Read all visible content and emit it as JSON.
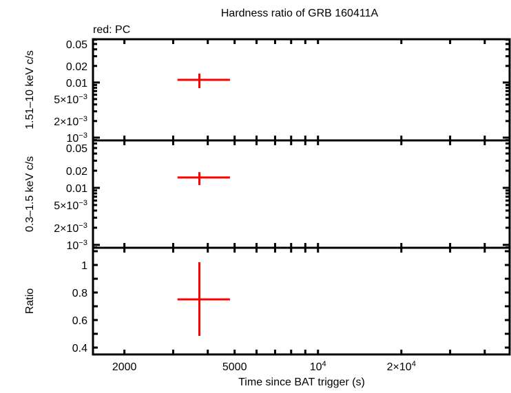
{
  "chart_data": {
    "type": "scatter",
    "title": "Hardness ratio of GRB 160411A",
    "legend": "red: PC",
    "legend_placement": "top-left",
    "xlabel": "Time since BAT trigger (s)",
    "xscale": "log",
    "xlim": [
      1540,
      49200
    ],
    "xticks": [
      {
        "value": 2000,
        "label": "2000"
      },
      {
        "value": 5000,
        "label": "5000"
      },
      {
        "value": 10000,
        "label": "10",
        "sup": "4"
      },
      {
        "value": 20000,
        "label": "2×10",
        "sup": "4"
      }
    ],
    "series_color": "#ff0000",
    "panels": [
      {
        "ylabel": "1.51–10 keV c/s",
        "yscale": "log",
        "ylim": [
          0.00089,
          0.061
        ],
        "yticks": [
          {
            "value": 0.05,
            "label": "0.05",
            "sup": ""
          },
          {
            "value": 0.02,
            "label": "0.02",
            "sup": ""
          },
          {
            "value": 0.01,
            "label": "0.01",
            "sup": ""
          },
          {
            "value": 0.005,
            "label": "5×10",
            "sup": "−3"
          },
          {
            "value": 0.002,
            "label": "2×10",
            "sup": "−3"
          },
          {
            "value": 0.001,
            "label": "10",
            "sup": "−3"
          }
        ],
        "points": [
          {
            "x": 3730,
            "xlo": 3110,
            "xhi": 4810,
            "y": 0.0112,
            "ylo": 0.0079,
            "yhi": 0.0145
          }
        ]
      },
      {
        "ylabel": "0.3–1.5 keV c/s",
        "yscale": "log",
        "ylim": [
          0.00089,
          0.068
        ],
        "yticks": [
          {
            "value": 0.05,
            "label": "0.05",
            "sup": ""
          },
          {
            "value": 0.02,
            "label": "0.02",
            "sup": ""
          },
          {
            "value": 0.01,
            "label": "0.01",
            "sup": ""
          },
          {
            "value": 0.005,
            "label": "5×10",
            "sup": "−3"
          },
          {
            "value": 0.002,
            "label": "2×10",
            "sup": "−3"
          },
          {
            "value": 0.001,
            "label": "10",
            "sup": "−3"
          }
        ],
        "points": [
          {
            "x": 3730,
            "xlo": 3110,
            "xhi": 4810,
            "y": 0.0152,
            "ylo": 0.0112,
            "yhi": 0.0189
          }
        ]
      },
      {
        "ylabel": "Ratio",
        "yscale": "linear",
        "ylim": [
          0.35,
          1.125
        ],
        "yticks": [
          {
            "value": 1,
            "label": "1",
            "sup": ""
          },
          {
            "value": 0.8,
            "label": "0.8",
            "sup": ""
          },
          {
            "value": 0.6,
            "label": "0.6",
            "sup": ""
          },
          {
            "value": 0.4,
            "label": "0.4",
            "sup": ""
          }
        ],
        "points": [
          {
            "x": 3730,
            "xlo": 3110,
            "xhi": 4810,
            "y": 0.75,
            "ylo": 0.485,
            "yhi": 1.02
          }
        ]
      }
    ]
  }
}
